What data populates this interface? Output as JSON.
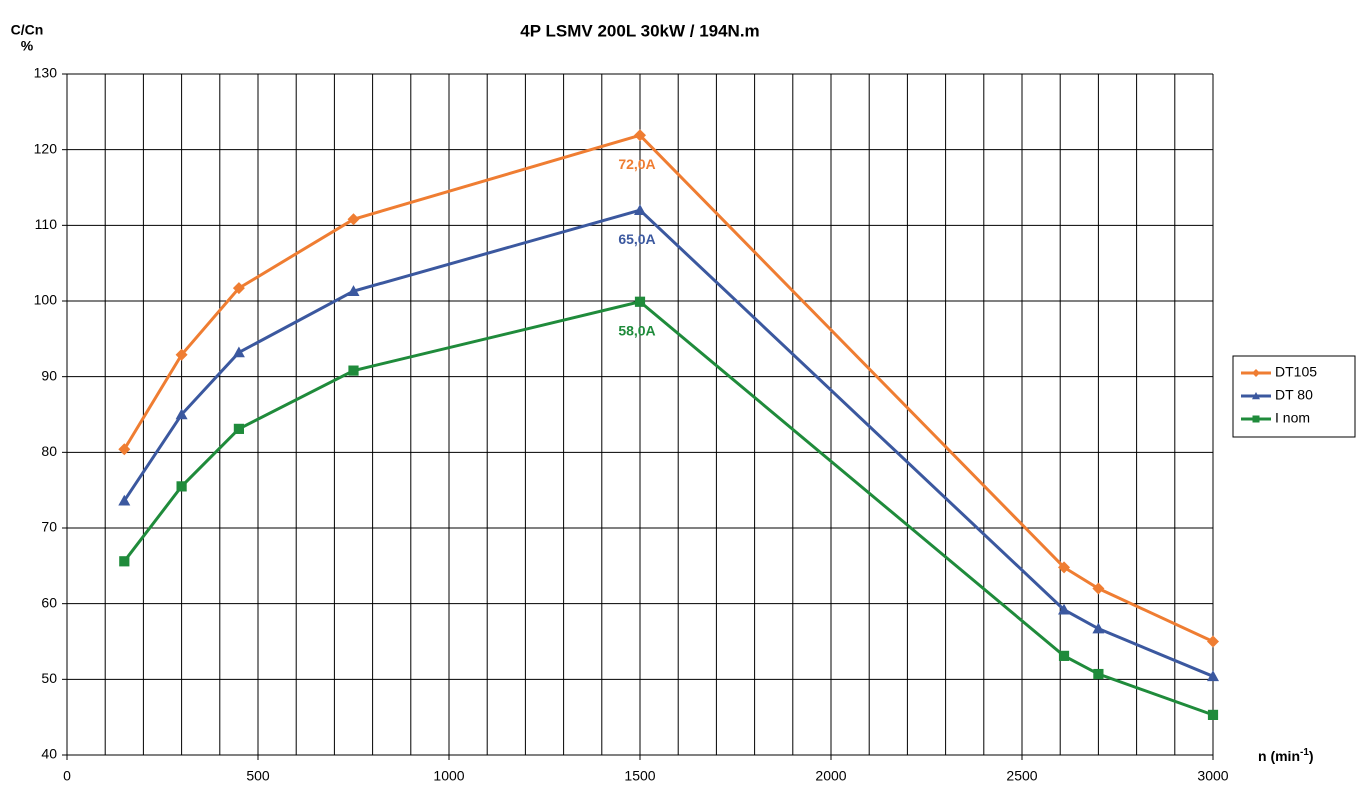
{
  "chart_data": {
    "type": "line",
    "title": "4P LSMV 200L 30kW / 194N.m",
    "ylabel": "C/Cn",
    "ylabel_unit": "%",
    "xlabel": [
      "n (min",
      "-1",
      ")"
    ],
    "x": [
      150,
      300,
      450,
      750,
      1500,
      2610,
      2700,
      3000
    ],
    "series": [
      {
        "name": "DT105",
        "color": "#ef7d32",
        "marker": "diamond",
        "values": [
          80.4,
          92.9,
          101.7,
          110.8,
          121.9,
          64.8,
          62,
          55
        ],
        "annotation": {
          "text": "72,0A",
          "index": 4
        }
      },
      {
        "name": "DT 80",
        "color": "#3b589f",
        "marker": "triangle",
        "values": [
          73.6,
          85,
          93.2,
          101.3,
          112,
          59.2,
          56.7,
          50.4
        ],
        "annotation": {
          "text": "65,0A",
          "index": 4
        }
      },
      {
        "name": "I nom",
        "color": "#1f8b3b",
        "marker": "square",
        "values": [
          65.6,
          75.5,
          83.1,
          90.8,
          99.9,
          53.1,
          50.7,
          45.3
        ],
        "annotation": {
          "text": "58,0A",
          "index": 4
        }
      }
    ],
    "xlim": [
      0,
      3000
    ],
    "xticks": [
      0,
      500,
      1000,
      1500,
      2000,
      2500,
      3000
    ],
    "xgrid": [
      0,
      100,
      200,
      300,
      400,
      500,
      600,
      700,
      800,
      900,
      1000,
      1100,
      1200,
      1300,
      1400,
      1500,
      1600,
      1700,
      1800,
      1900,
      2000,
      2100,
      2200,
      2300,
      2400,
      2500,
      2600,
      2700,
      2800,
      2900,
      3000
    ],
    "ylim": [
      40,
      130
    ],
    "yticks": [
      40,
      50,
      60,
      70,
      80,
      90,
      100,
      110,
      120,
      130
    ],
    "grid": true,
    "legend": "right"
  }
}
